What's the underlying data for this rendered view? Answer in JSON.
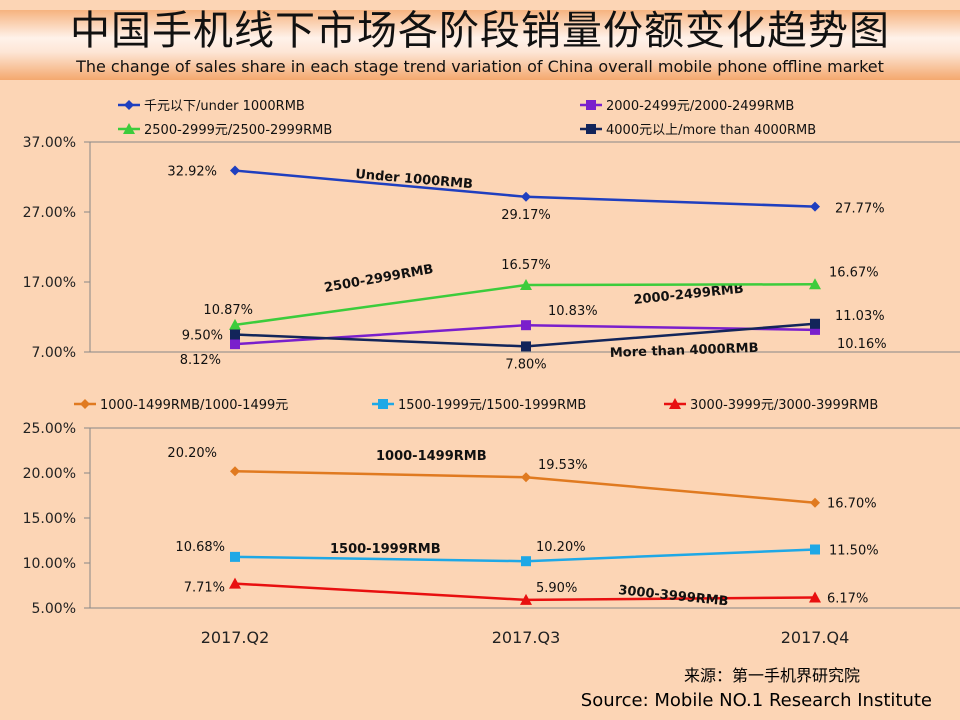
{
  "title": "中国手机线下市场各阶段销量份额变化趋势图",
  "subtitle": "The change of sales share in each stage trend variation of China overall mobile phone offline market",
  "source_cn": "来源：第一手机界研究院",
  "source_en": "Source: Mobile NO.1 Research Institute",
  "chart_data": [
    {
      "type": "line",
      "categories": [
        "2017.Q2",
        "2017.Q3",
        "2017.Q4"
      ],
      "ylim": [
        7,
        37
      ],
      "yticks": [
        "7.00%",
        "17.00%",
        "27.00%",
        "37.00%"
      ],
      "legend_placement": "top",
      "series": [
        {
          "name": "千元以下/under 1000RMB",
          "values": [
            32.92,
            29.17,
            27.77
          ],
          "labels": [
            "32.92%",
            "29.17%",
            "27.77%"
          ],
          "color": "#1f3fbf",
          "marker": "diamond",
          "annotation": "Under 1000RMB"
        },
        {
          "name": "2000-2499元/2000-2499RMB",
          "values": [
            8.12,
            10.83,
            10.16
          ],
          "labels": [
            "8.12%",
            "10.83%",
            "10.16%"
          ],
          "color": "#7a1fcc",
          "marker": "square",
          "annotation": "2000-2499RMB"
        },
        {
          "name": "2500-2999元/2500-2999RMB",
          "values": [
            10.87,
            16.57,
            16.67
          ],
          "labels": [
            "10.87%",
            "16.57%",
            "16.67%"
          ],
          "color": "#3ccc3c",
          "marker": "triangle",
          "annotation": "2500-2999RMB"
        },
        {
          "name": "4000元以上/more than 4000RMB",
          "values": [
            9.5,
            7.8,
            11.03
          ],
          "labels": [
            "9.50%",
            "7.80%",
            "11.03%"
          ],
          "color": "#13255a",
          "marker": "square",
          "annotation": "More than 4000RMB"
        }
      ]
    },
    {
      "type": "line",
      "categories": [
        "2017.Q2",
        "2017.Q3",
        "2017.Q4"
      ],
      "ylim": [
        5,
        25
      ],
      "yticks": [
        "5.00%",
        "10.00%",
        "15.00%",
        "20.00%",
        "25.00%"
      ],
      "legend_placement": "top",
      "series": [
        {
          "name": "1000-1499RMB/1000-1499元",
          "values": [
            20.2,
            19.53,
            16.7
          ],
          "labels": [
            "20.20%",
            "19.53%",
            "16.70%"
          ],
          "color": "#e07a20",
          "marker": "diamond",
          "annotation": "1000-1499RMB"
        },
        {
          "name": "1500-1999元/1500-1999RMB",
          "values": [
            10.68,
            10.2,
            11.5
          ],
          "labels": [
            "10.68%",
            "10.20%",
            "11.50%"
          ],
          "color": "#1ea8e6",
          "marker": "square",
          "annotation": "1500-1999RMB"
        },
        {
          "name": "3000-3999元/3000-3999RMB",
          "values": [
            7.71,
            5.9,
            6.17
          ],
          "labels": [
            "7.71%",
            "5.90%",
            "6.17%"
          ],
          "color": "#e81010",
          "marker": "triangle",
          "annotation": "3000-3999RMB"
        }
      ]
    }
  ]
}
